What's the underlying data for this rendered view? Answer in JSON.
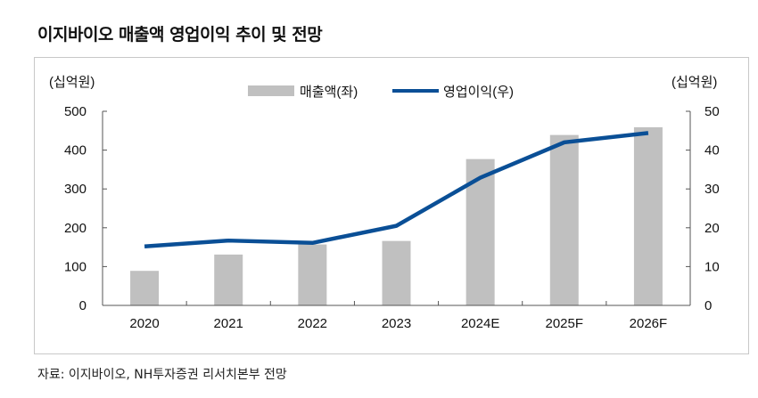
{
  "title": "이지바이오 매출액 영업이익 추이 및 전망",
  "source": "자료: 이지바이오, NH투자증권 리서치본부 전망",
  "chart_data": {
    "type": "bar+line",
    "categories": [
      "2020",
      "2021",
      "2022",
      "2023",
      "2024E",
      "2025F",
      "2026F"
    ],
    "series": [
      {
        "name": "매출액(좌)",
        "type": "bar",
        "axis": "left",
        "color": "#c0c0c0",
        "values": [
          89,
          131,
          157,
          166,
          377,
          439,
          459
        ]
      },
      {
        "name": "영업이익(우)",
        "type": "line",
        "axis": "right",
        "color": "#0a4f96",
        "values": [
          15.2,
          16.7,
          16.1,
          20.5,
          32.9,
          42.0,
          44.4
        ]
      }
    ],
    "ylabel_left": "(십억원)",
    "ylabel_right": "(십억원)",
    "ylim_left": [
      0,
      500
    ],
    "ylim_right": [
      0,
      50
    ],
    "yticks_left": [
      "0",
      "100",
      "200",
      "300",
      "400",
      "500"
    ],
    "yticks_right": [
      "0",
      "10",
      "20",
      "30",
      "40",
      "50"
    ],
    "grid": false,
    "legend": "top"
  }
}
